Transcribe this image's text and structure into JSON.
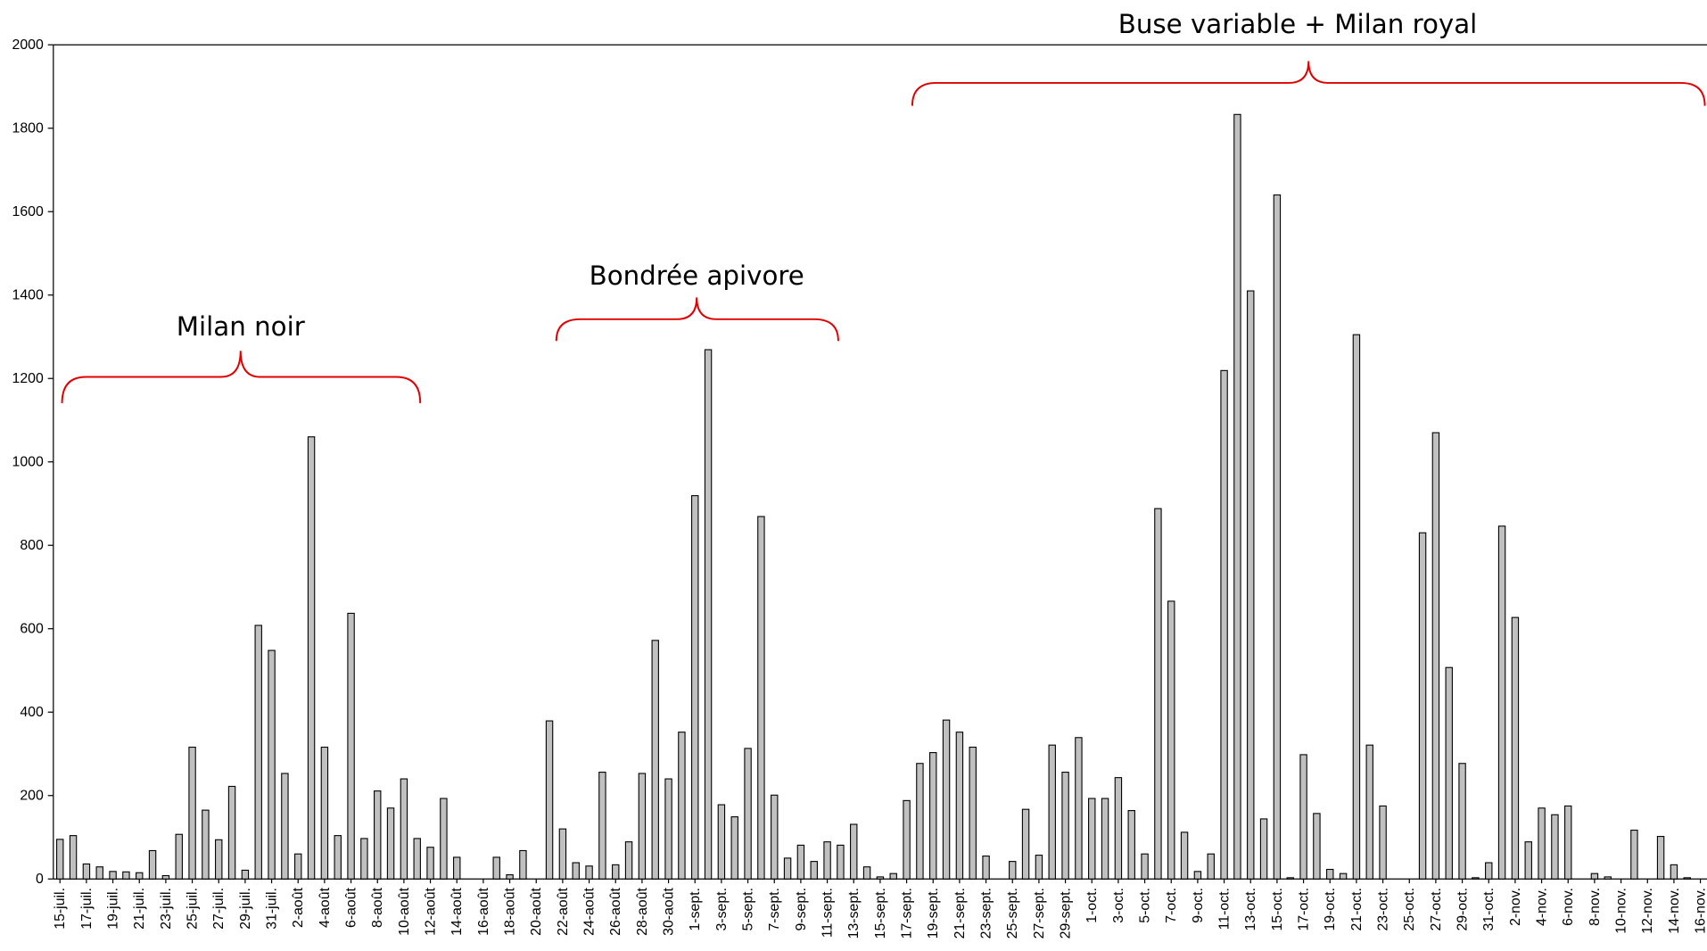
{
  "chart_data": {
    "type": "bar",
    "annotations": [
      "Milan noir",
      "Bondrée apivore",
      "Buse variable + Milan royal"
    ],
    "categories": [
      "15-juil.",
      null,
      "17-juil.",
      null,
      "19-juil.",
      null,
      "21-juil.",
      null,
      "23-juil.",
      null,
      "25-juil.",
      null,
      "27-juil.",
      null,
      "29-juil.",
      null,
      "31-juil.",
      null,
      "2-août",
      null,
      "4-août",
      null,
      "6-août",
      null,
      "8-août",
      null,
      "10-août",
      null,
      "12-août",
      null,
      "14-août",
      null,
      "16-août",
      null,
      "18-août",
      null,
      "20-août",
      null,
      "22-août",
      null,
      "24-août",
      null,
      "26-août",
      null,
      "28-août",
      null,
      "30-août",
      null,
      "1-sept.",
      null,
      "3-sept.",
      null,
      "5-sept.",
      null,
      "7-sept.",
      null,
      "9-sept.",
      null,
      "11-sept.",
      null,
      "13-sept.",
      null,
      "15-sept.",
      null,
      "17-sept.",
      null,
      "19-sept.",
      null,
      "21-sept.",
      null,
      "23-sept.",
      null,
      "25-sept.",
      null,
      "27-sept.",
      null,
      "29-sept.",
      null,
      "1-oct.",
      null,
      "3-oct.",
      null,
      "5-oct.",
      null,
      "7-oct.",
      null,
      "9-oct.",
      null,
      "11-oct.",
      null,
      "13-oct.",
      null,
      "15-oct.",
      null,
      "17-oct.",
      null,
      "19-oct.",
      null,
      "21-oct.",
      null,
      "23-oct.",
      null,
      "25-oct.",
      null,
      "27-oct.",
      null,
      "29-oct.",
      null,
      "31-oct.",
      null,
      "2-nov.",
      null,
      "4-nov.",
      null,
      "6-nov.",
      null,
      "8-nov.",
      null,
      "10-nov.",
      null,
      "12-nov.",
      null,
      "14-nov.",
      null,
      "16-nov."
    ],
    "values": [
      95,
      104,
      36,
      29,
      18,
      17,
      15,
      68,
      8,
      107,
      316,
      165,
      94,
      222,
      21,
      608,
      548,
      253,
      60,
      1060,
      316,
      104,
      637,
      97,
      211,
      170,
      240,
      97,
      76,
      193,
      52,
      0,
      0,
      52,
      10,
      68,
      0,
      379,
      120,
      39,
      31,
      256,
      34,
      89,
      253,
      572,
      240,
      352,
      919,
      1269,
      178,
      149,
      313,
      869,
      201,
      50,
      81,
      42,
      89,
      81,
      131,
      29,
      5,
      13,
      188,
      277,
      303,
      381,
      352,
      316,
      55,
      0,
      42,
      167,
      57,
      321,
      256,
      339,
      193,
      193,
      243,
      164,
      60,
      888,
      666,
      112,
      18,
      60,
      1219,
      1833,
      1410,
      144,
      1640,
      3,
      298,
      157,
      23,
      13,
      1305,
      321,
      175,
      0,
      0,
      830,
      1070,
      507,
      277,
      3,
      39,
      846,
      627,
      89,
      170,
      154,
      175,
      0,
      13,
      5,
      0,
      117,
      0,
      102,
      34,
      3,
      0
    ],
    "color": "#c0c0c0",
    "ylim": [
      0,
      2000
    ],
    "yticks": [
      0,
      200,
      400,
      600,
      800,
      1000,
      1200,
      1400,
      1600,
      1800,
      2000
    ],
    "grid": false
  }
}
